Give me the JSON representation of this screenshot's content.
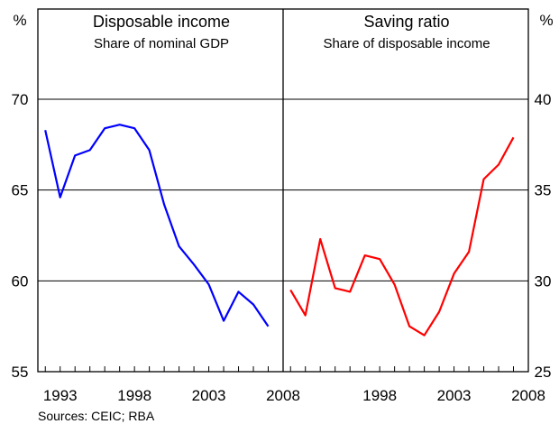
{
  "chart_data": [
    {
      "type": "line",
      "title": "Disposable income",
      "subtitle": "Share of nominal GDP",
      "unit": "%",
      "ylim": [
        55,
        70
      ],
      "xlim": [
        1991.5,
        2008
      ],
      "y_ticks": [
        "70",
        "65",
        "60",
        "55"
      ],
      "x_ticks": [
        "1993",
        "1998",
        "2003",
        "2008"
      ],
      "color": "#0000ff",
      "series": [
        {
          "x": [
            1992,
            1993,
            1994,
            1995,
            1996,
            1997,
            1998,
            1999,
            2000,
            2001,
            2002,
            2003,
            2004,
            2005,
            2006,
            2007
          ],
          "values": [
            68.3,
            64.6,
            66.9,
            67.2,
            68.4,
            68.6,
            68.4,
            67.2,
            64.2,
            61.9,
            60.9,
            59.8,
            57.8,
            59.4,
            58.7,
            57.5
          ]
        }
      ]
    },
    {
      "type": "line",
      "title": "Saving ratio",
      "subtitle": "Share of disposable income",
      "unit": "%",
      "ylim": [
        25,
        40
      ],
      "xlim": [
        1991.5,
        2008
      ],
      "y_ticks": [
        "40",
        "35",
        "30",
        "25"
      ],
      "x_ticks": [
        "1998",
        "2003",
        "2008"
      ],
      "color": "#ff0000",
      "series": [
        {
          "x": [
            1992,
            1993,
            1994,
            1995,
            1996,
            1997,
            1998,
            1999,
            2000,
            2001,
            2002,
            2003,
            2004,
            2005,
            2006,
            2007
          ],
          "values": [
            29.5,
            28.1,
            32.3,
            29.6,
            29.4,
            31.4,
            31.2,
            29.8,
            27.5,
            27.0,
            28.3,
            30.4,
            31.6,
            35.6,
            36.4,
            37.9
          ]
        }
      ]
    }
  ],
  "footer": {
    "sources": "Sources: CEIC; RBA"
  }
}
